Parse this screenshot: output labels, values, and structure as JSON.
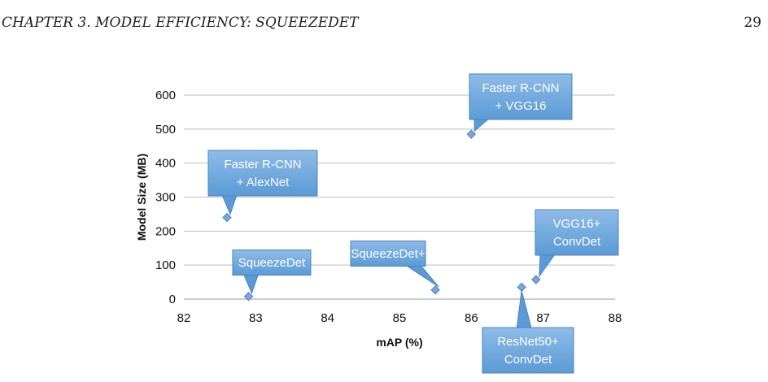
{
  "header": {
    "chapter": "CHAPTER 3.  MODEL EFFICIENCY: SQUEEZEDET",
    "page_number": "29"
  },
  "chart_data": {
    "type": "scatter",
    "title": "",
    "xlabel": "mAP (%)",
    "ylabel": "Model Size (MB)",
    "xlim": [
      82,
      88
    ],
    "ylim": [
      0,
      600
    ],
    "xticks": [
      82,
      83,
      84,
      85,
      86,
      87,
      88
    ],
    "yticks": [
      0,
      100,
      200,
      300,
      400,
      500,
      600
    ],
    "grid": "horizontal",
    "legend": "none",
    "marker_color": "#7aa7df",
    "callout_color": "#5b9bd5",
    "points": [
      {
        "label": "Faster R-CNN\n+ AlexNet",
        "x": 82.6,
        "y": 240
      },
      {
        "label": "SqueezeDet",
        "x": 82.9,
        "y": 7.9
      },
      {
        "label": "SqueezeDet+",
        "x": 85.5,
        "y": 26.8
      },
      {
        "label": "Faster R-CNN\n+ VGG16",
        "x": 86.0,
        "y": 485
      },
      {
        "label": "ResNet50+\nConvDet",
        "x": 86.7,
        "y": 35.1
      },
      {
        "label": "VGG16+\nConvDet",
        "x": 86.9,
        "y": 57.4
      }
    ]
  }
}
